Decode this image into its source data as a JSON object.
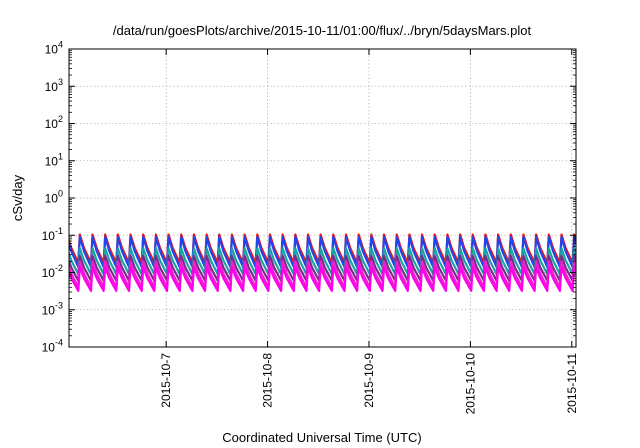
{
  "chart_data": {
    "type": "line",
    "title": "/data/run/goesPlots/archive/2015-10-11/01:00/flux/../bryn/5daysMars.plot",
    "xlabel": "Coordinated Universal Time (UTC)",
    "ylabel": "cSv/day",
    "y_scale": "log",
    "ylim": [
      0.0001,
      10000
    ],
    "xlim": [
      "2015-10-06 01:00",
      "2015-10-11 01:00"
    ],
    "y_ticks": [
      {
        "base": "10",
        "exp": "-4",
        "value": 0.0001
      },
      {
        "base": "10",
        "exp": "-3",
        "value": 0.001
      },
      {
        "base": "10",
        "exp": "-2",
        "value": 0.01
      },
      {
        "base": "10",
        "exp": "-1",
        "value": 0.1
      },
      {
        "base": "10",
        "exp": "0",
        "value": 1
      },
      {
        "base": "10",
        "exp": "1",
        "value": 10
      },
      {
        "base": "10",
        "exp": "2",
        "value": 100
      },
      {
        "base": "10",
        "exp": "3",
        "value": 1000
      },
      {
        "base": "10",
        "exp": "4",
        "value": 10000
      }
    ],
    "x_ticks": [
      {
        "label": "2015-10-7",
        "value": "2015-10-07 00:00"
      },
      {
        "label": "2015-10-8",
        "value": "2015-10-08 00:00"
      },
      {
        "label": "2015-10-9",
        "value": "2015-10-09 00:00"
      },
      {
        "label": "2015-10-10",
        "value": "2015-10-10 00:00"
      },
      {
        "label": "2015-10-11",
        "value": "2015-10-11 00:00"
      }
    ],
    "grid": true,
    "pattern": {
      "sawtooth_period_hours": 3,
      "shape": "rapid rise to peak then decay to trough each period"
    },
    "series": [
      {
        "color": "#e31a1c",
        "peak": 0.105,
        "trough": 0.018
      },
      {
        "color": "#2244ee",
        "peak": 0.09,
        "trough": 0.014
      },
      {
        "color": "#1aa3a3",
        "peak": 0.045,
        "trough": 0.009
      },
      {
        "color": "#7a2a8a",
        "peak": 0.028,
        "trough": 0.006
      },
      {
        "color": "#ee22cc",
        "peak": 0.02,
        "trough": 0.004
      },
      {
        "color": "#ff00ee",
        "peak": 0.014,
        "trough": 0.0032
      }
    ]
  }
}
